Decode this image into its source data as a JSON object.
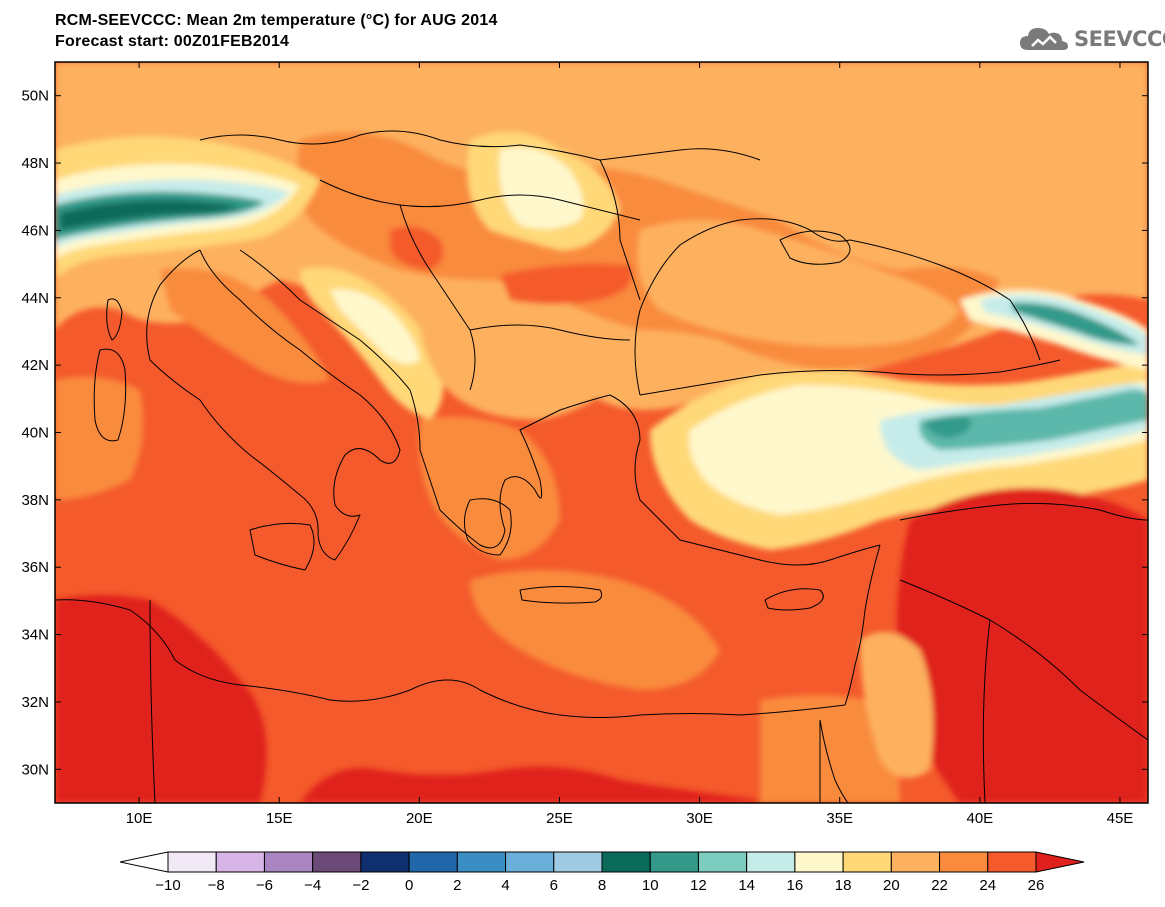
{
  "header": {
    "title": "RCM-SEEVCCC: Mean 2m temperature (°C) for AUG 2014",
    "subtitle": "Forecast start: 00Z01FEB2014"
  },
  "logo": {
    "text": "SEEVCCC",
    "icon": "cloud-icon",
    "color": "#7a7a7a"
  },
  "map": {
    "lat_range": [
      29,
      51
    ],
    "lon_range": [
      7,
      46
    ],
    "lat_ticks": [
      {
        "value": 50,
        "label": "50N"
      },
      {
        "value": 48,
        "label": "48N"
      },
      {
        "value": 46,
        "label": "46N"
      },
      {
        "value": 44,
        "label": "44N"
      },
      {
        "value": 42,
        "label": "42N"
      },
      {
        "value": 40,
        "label": "40N"
      },
      {
        "value": 38,
        "label": "38N"
      },
      {
        "value": 36,
        "label": "36N"
      },
      {
        "value": 34,
        "label": "34N"
      },
      {
        "value": 32,
        "label": "32N"
      },
      {
        "value": 30,
        "label": "30N"
      }
    ],
    "lon_ticks": [
      {
        "value": 10,
        "label": "10E"
      },
      {
        "value": 15,
        "label": "15E"
      },
      {
        "value": 20,
        "label": "20E"
      },
      {
        "value": 25,
        "label": "25E"
      },
      {
        "value": 30,
        "label": "30E"
      },
      {
        "value": 35,
        "label": "35E"
      },
      {
        "value": 40,
        "label": "40E"
      },
      {
        "value": 45,
        "label": "45E"
      }
    ]
  },
  "legend": {
    "labels": [
      "−10",
      "−8",
      "−6",
      "−4",
      "−2",
      "0",
      "2",
      "4",
      "6",
      "8",
      "10",
      "12",
      "14",
      "16",
      "18",
      "20",
      "22",
      "24",
      "26"
    ],
    "under_color": "#ffffff",
    "over_color": "#e0201c",
    "colors": [
      "#f1e9f6",
      "#d7b5e6",
      "#a986c2",
      "#6b4a78",
      "#0f2f6e",
      "#2066a8",
      "#3b8ec4",
      "#6aafd9",
      "#9ecbe3",
      "#0b6b5a",
      "#339a8a",
      "#7ccdc0",
      "#c6ecea",
      "#fff8cc",
      "#ffd878",
      "#fdb15f",
      "#f98b3e",
      "#f45a2b"
    ]
  },
  "fields": {
    "c12": "#2a8a78",
    "c14": "#5bb8aa",
    "c16": "#c6ecea",
    "c18": "#fff8cc",
    "c20": "#ffd878",
    "c22": "#fdb15f",
    "c24": "#f98b3e",
    "c26": "#f45a2b",
    "c28": "#e0201c",
    "c10": "#0b6b5a"
  }
}
